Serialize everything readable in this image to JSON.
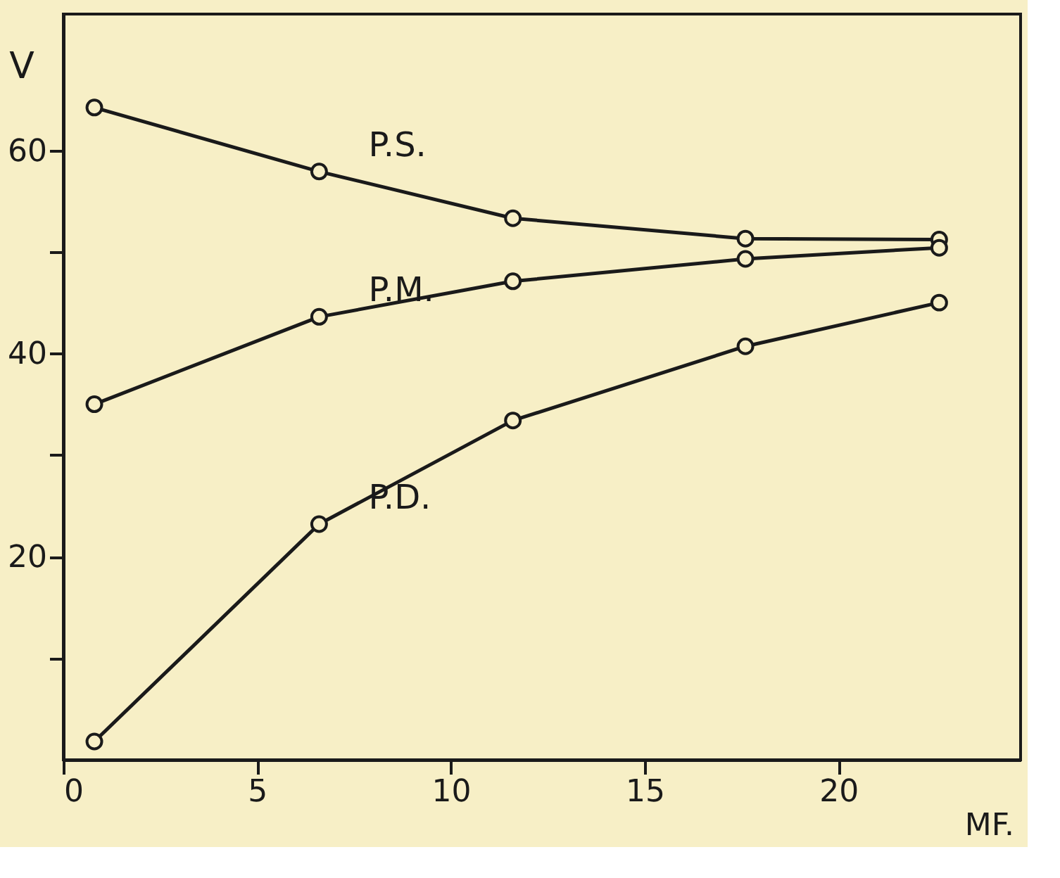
{
  "chart_data": {
    "type": "line",
    "xlabel": "MF.",
    "ylabel": "V",
    "x": [
      0.8,
      6.6,
      11.6,
      17.6,
      22.6
    ],
    "series": [
      {
        "name": "P.S.",
        "color": "#1a1a1a",
        "values": [
          64.2,
          57.9,
          53.3,
          51.3,
          51.2
        ]
      },
      {
        "name": "P.M.",
        "color": "#1a1a1a",
        "values": [
          35.0,
          43.6,
          47.1,
          49.3,
          50.4
        ]
      },
      {
        "name": "P.D.",
        "color": "#1a1a1a",
        "values": [
          1.8,
          23.2,
          33.4,
          40.7,
          45.0
        ]
      }
    ],
    "xlim": [
      0,
      24.7
    ],
    "ylim": [
      0,
      73.4
    ],
    "xticks": [
      0,
      5,
      10,
      15,
      20
    ],
    "yticks": [
      {
        "value": 10,
        "label": null
      },
      20,
      {
        "value": 30,
        "label": null
      },
      40,
      {
        "value": 50,
        "label": null
      },
      60
    ],
    "marker": "circle",
    "line_style": "solid",
    "grid": false
  }
}
